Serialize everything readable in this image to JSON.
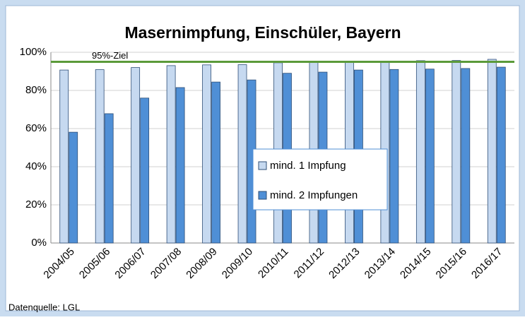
{
  "chart_data": {
    "type": "bar",
    "title": "Masernimpfung, Einschüler, Bayern",
    "categories": [
      "2004/05",
      "2005/06",
      "2006/07",
      "2007/08",
      "2008/09",
      "2009/10",
      "2010/11",
      "2011/12",
      "2012/13",
      "2013/14",
      "2014/15",
      "2015/16",
      "2016/17"
    ],
    "series": [
      {
        "name": "mind. 1 Impfung",
        "color": "#c6d9f0",
        "values": [
          90.7,
          90.9,
          92,
          93,
          93.4,
          93.5,
          94.5,
          94.6,
          95,
          95,
          95.6,
          95.7,
          96.3
        ]
      },
      {
        "name": "mind. 2 Impfungen",
        "color": "#4f8fd6",
        "values": [
          58.1,
          67.8,
          76,
          81.5,
          84.4,
          85.5,
          89,
          89.6,
          90.7,
          91,
          91.2,
          91.5,
          92.2
        ]
      }
    ],
    "ylim": [
      0,
      100
    ],
    "yticks": [
      {
        "value": 0,
        "label": "0%"
      },
      {
        "value": 20,
        "label": "20%"
      },
      {
        "value": 40,
        "label": "40%"
      },
      {
        "value": 60,
        "label": "60%"
      },
      {
        "value": 80,
        "label": "80%"
      },
      {
        "value": 100,
        "label": "100%"
      }
    ],
    "grid": true,
    "target": {
      "value": 95,
      "label": "95%-Ziel",
      "color": "#5b9a3a"
    },
    "legend": "center",
    "source": "Datenquelle: LGL"
  }
}
